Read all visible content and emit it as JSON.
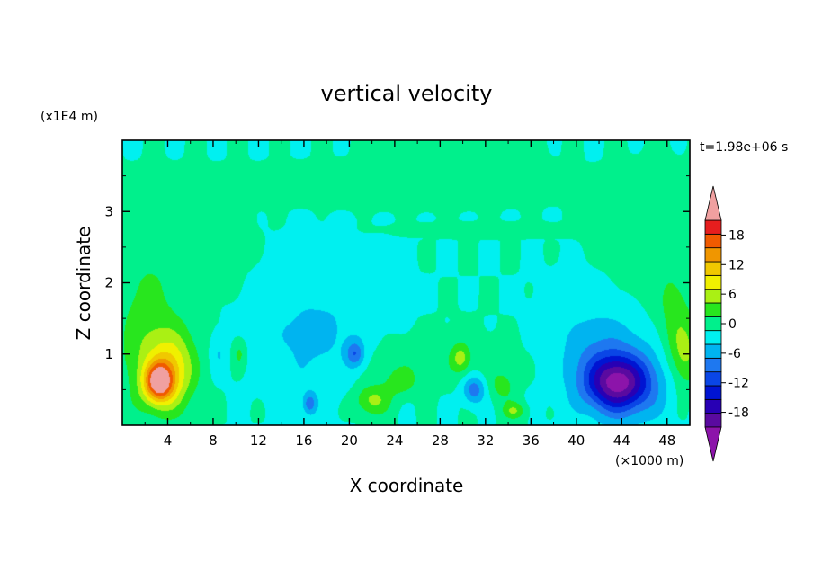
{
  "chart_data": {
    "type": "heatmap",
    "title": "vertical velocity",
    "xlabel": "X coordinate",
    "ylabel": "Z coordinate",
    "x_unit": "(×1000 m)",
    "y_unit": "(x1E4 m)",
    "time_label": "t=1.98e+06 s",
    "xlim": [
      0,
      50
    ],
    "ylim": [
      0,
      4
    ],
    "x_ticks": [
      "4",
      "8",
      "12",
      "16",
      "20",
      "24",
      "28",
      "32",
      "36",
      "40",
      "44",
      "48"
    ],
    "y_ticks": [
      "1",
      "2",
      "3"
    ],
    "colorbar": {
      "levels": [
        -21,
        -18,
        -15,
        -12,
        -9,
        -6,
        -3,
        0,
        3,
        6,
        9,
        12,
        15,
        18,
        21
      ],
      "colors": [
        "#5a0aa0",
        "#2800b4",
        "#0014d2",
        "#0a46e6",
        "#1e78f0",
        "#00b4f0",
        "#00f0f0",
        "#00f08c",
        "#28e61e",
        "#aaf014",
        "#f0f000",
        "#f0c800",
        "#f09600",
        "#f05a00",
        "#e61e1e"
      ],
      "over_color": "#f0a0a0",
      "under_color": "#8c14aa",
      "tick_labels": [
        "18",
        "12",
        "6",
        "0",
        "-6",
        "-12",
        "-18"
      ]
    },
    "features": [
      {
        "x": 3.2,
        "z": 0.6,
        "w": -1,
        "value": 19,
        "sx": 1.3,
        "sz": 0.28
      },
      {
        "x": 4.5,
        "z": 0.8,
        "w": -1,
        "value": 10,
        "sx": 2.0,
        "sz": 0.55
      },
      {
        "x": 2.0,
        "z": 1.1,
        "w": -1,
        "value": 5,
        "sx": 2.5,
        "sz": 0.9
      },
      {
        "x": 8.5,
        "z": 1.0,
        "w": -1,
        "value": -3,
        "sx": 0.7,
        "sz": 0.25
      },
      {
        "x": 10.3,
        "z": 1.0,
        "w": -1,
        "value": 4,
        "sx": 0.6,
        "sz": 0.2
      },
      {
        "x": 17.0,
        "z": 1.2,
        "w": -1,
        "value": -4,
        "sx": 5.0,
        "sz": 0.8
      },
      {
        "x": 20.5,
        "z": 1.0,
        "w": -1,
        "value": -8,
        "sx": 0.8,
        "sz": 0.18
      },
      {
        "x": 16.5,
        "z": 0.3,
        "w": -1,
        "value": -7,
        "sx": 0.6,
        "sz": 0.15
      },
      {
        "x": 22.0,
        "z": 0.35,
        "w": -1,
        "value": 7,
        "sx": 1.6,
        "sz": 0.22
      },
      {
        "x": 24.5,
        "z": 0.6,
        "w": -1,
        "value": 4,
        "sx": 1.5,
        "sz": 0.2
      },
      {
        "x": 29.8,
        "z": 0.95,
        "w": -1,
        "value": 6,
        "sx": 0.8,
        "sz": 0.2
      },
      {
        "x": 31.0,
        "z": 0.5,
        "w": -1,
        "value": -8,
        "sx": 1.0,
        "sz": 0.2
      },
      {
        "x": 34.5,
        "z": 0.2,
        "w": -1,
        "value": 6,
        "sx": 1.0,
        "sz": 0.12
      },
      {
        "x": 33.5,
        "z": 0.55,
        "w": -1,
        "value": 4,
        "sx": 1.2,
        "sz": 0.22
      },
      {
        "x": 43.5,
        "z": 0.6,
        "w": -1,
        "value": -13,
        "sx": 2.5,
        "sz": 0.35
      },
      {
        "x": 44.5,
        "z": 0.55,
        "w": -1,
        "value": -8,
        "sx": 3.5,
        "sz": 0.5
      },
      {
        "x": 42.0,
        "z": 1.0,
        "w": -1,
        "value": -5,
        "sx": 4.0,
        "sz": 0.7
      },
      {
        "x": 49.5,
        "z": 1.0,
        "w": -1,
        "value": 7,
        "sx": 1.4,
        "sz": 0.5
      },
      {
        "x": 48.5,
        "z": 1.6,
        "w": -1,
        "value": 3,
        "sx": 1.5,
        "sz": 0.5
      },
      {
        "x": 4.0,
        "z": 2.3,
        "w": -1,
        "value": 2,
        "sx": 5.0,
        "sz": 0.6
      },
      {
        "x": 47.0,
        "z": 2.3,
        "w": -1,
        "value": 2,
        "sx": 3.5,
        "sz": 0.7
      },
      {
        "x": 24.0,
        "z": 3.35,
        "w": -1,
        "value": 2,
        "sx": 9.0,
        "sz": 0.18
      },
      {
        "x": 29.0,
        "z": 3.7,
        "w": -1,
        "value": 2,
        "sx": 4.0,
        "sz": 0.3
      },
      {
        "x": 33.0,
        "z": 2.75,
        "w": -1,
        "value": 2,
        "sx": 6.0,
        "sz": 0.06
      },
      {
        "x": 26.0,
        "z": 0.9,
        "w": -1,
        "value": 2,
        "sx": 8.0,
        "sz": 0.35
      }
    ]
  }
}
